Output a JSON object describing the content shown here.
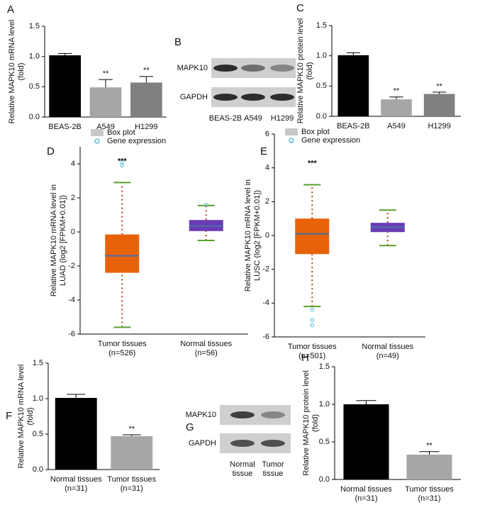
{
  "chart_data": [
    {
      "type": "bar",
      "panel": "A",
      "ylabel": [
        "Relative MAPK10 mRNA level",
        "(fold)"
      ],
      "categories": [
        "BEAS-2B",
        "A549",
        "H1299"
      ],
      "values": [
        1.02,
        0.49,
        0.57
      ],
      "errors": [
        0.03,
        0.13,
        0.1
      ],
      "colors": [
        "#000000",
        "#a6a6a6",
        "#808080"
      ],
      "significance": [
        null,
        "**",
        "**"
      ],
      "ylim": [
        0,
        1.5
      ],
      "yticks": [
        {
          "value": 0,
          "label": "0.0"
        },
        {
          "value": 0.5,
          "label": "0.5"
        },
        {
          "value": 1,
          "label": "1.0"
        },
        {
          "value": 1.5,
          "label": "1.5"
        }
      ]
    },
    {
      "type": "blot",
      "panel": "B",
      "rows": [
        "MAPK10",
        "GAPDH"
      ],
      "lanes": [
        [
          "BEAS-2B"
        ],
        [
          "A549"
        ],
        [
          "H1299"
        ]
      ]
    },
    {
      "type": "bar",
      "panel": "C",
      "ylabel": [
        "Relative MAPK10 protein level",
        "(fold)"
      ],
      "categories": [
        "BEAS-2B",
        "A549",
        "H1299"
      ],
      "values": [
        1.01,
        0.28,
        0.37
      ],
      "errors": [
        0.04,
        0.04,
        0.03
      ],
      "colors": [
        "#000000",
        "#a6a6a6",
        "#808080"
      ],
      "significance": [
        null,
        "**",
        "**"
      ],
      "ylim": [
        0,
        1.5
      ],
      "yticks": [
        {
          "value": 0,
          "label": "0.0"
        },
        {
          "value": 0.5,
          "label": "0.5"
        },
        {
          "value": 1,
          "label": "1.0"
        },
        {
          "value": 1.5,
          "label": "1.5"
        }
      ]
    },
    {
      "type": "box",
      "panel": "D",
      "ylabel": [
        "Relative MAPK10 mRNA level in",
        "LUAD (log2 [FPKM+0.01])"
      ],
      "legend": [
        "Box plot",
        "Gene expression"
      ],
      "categories": [
        "Tumor tissues",
        "Normal tissues"
      ],
      "sample_sizes": [
        "(n=526)",
        "(n=56)"
      ],
      "boxes": [
        {
          "whisker_low": -5.6,
          "q1": -2.4,
          "median": -1.4,
          "q3": -0.15,
          "whisker_high": 2.9,
          "outliers": [
            3.9,
            4.1
          ]
        },
        {
          "whisker_low": -0.5,
          "q1": 0.05,
          "median": 0.35,
          "q3": 0.7,
          "whisker_high": 1.55,
          "outliers": [
            1.6
          ]
        }
      ],
      "box_colors": [
        "#e8620a",
        "#6a3bb5"
      ],
      "median_color": "#4b6fa8",
      "whisker_color": "#b5401a",
      "cap_color": "#5aa02c",
      "outlier_color": "#49b6d6",
      "significance": [
        "***",
        null
      ],
      "ylim": [
        -6,
        5
      ],
      "yticks": [
        -6,
        -4,
        -2,
        0,
        2,
        4
      ]
    },
    {
      "type": "box",
      "panel": "E",
      "ylabel": [
        "Relative MAPK10 mRNA level in",
        "LUSC (log2 [FPKM+0.01])"
      ],
      "legend": [
        "Box plot",
        "Gene expression"
      ],
      "categories": [
        "Tumor tissues",
        "Normal tissues"
      ],
      "sample_sizes": [
        "(n=501)",
        "(n=49)"
      ],
      "boxes": [
        {
          "whisker_low": -4.2,
          "q1": -1.1,
          "median": 0.1,
          "q3": 1.0,
          "whisker_high": 3.0,
          "outliers": [
            -4.4,
            -5.0,
            -5.3
          ]
        },
        {
          "whisker_low": -0.6,
          "q1": 0.2,
          "median": 0.5,
          "q3": 0.75,
          "whisker_high": 1.5,
          "outliers": []
        }
      ],
      "box_colors": [
        "#e8620a",
        "#6a3bb5"
      ],
      "median_color": "#4b6fa8",
      "whisker_color": "#b5401a",
      "cap_color": "#5aa02c",
      "outlier_color": "#49b6d6",
      "significance": [
        "***",
        null
      ],
      "ylim": [
        -6,
        6
      ],
      "yticks": [
        -6,
        -4,
        -2,
        0,
        2,
        4,
        6
      ]
    },
    {
      "type": "bar",
      "panel": "F",
      "ylabel": [
        "Relative MAPK10 mRNA level",
        "(fold)"
      ],
      "categories": [
        "Normal tissues",
        "Tumor tissues"
      ],
      "sample_sizes": [
        "(n=31)",
        "(n=31)"
      ],
      "values": [
        1.01,
        0.47
      ],
      "errors": [
        0.05,
        0.02
      ],
      "colors": [
        "#000000",
        "#a6a6a6"
      ],
      "significance": [
        null,
        "**"
      ],
      "ylim": [
        0,
        1.5
      ],
      "yticks": [
        {
          "value": 0,
          "label": "0.0"
        },
        {
          "value": 0.5,
          "label": "0.5"
        },
        {
          "value": 1,
          "label": "1.0"
        },
        {
          "value": 1.5,
          "label": "1.5"
        }
      ]
    },
    {
      "type": "blot",
      "panel": "G",
      "rows": [
        "MAPK10",
        "GAPDH"
      ],
      "lanes": [
        [
          "Normal",
          "tissue"
        ],
        [
          "Tumor",
          "tissue"
        ]
      ]
    },
    {
      "type": "bar",
      "panel": "H",
      "ylabel": [
        "Relative MAPK10 protein level",
        "(fold)"
      ],
      "categories": [
        "Normal tissues",
        "Tumor tissues"
      ],
      "sample_sizes": [
        "(n=31)",
        "(n=31)"
      ],
      "values": [
        1.0,
        0.33
      ],
      "errors": [
        0.05,
        0.04
      ],
      "colors": [
        "#000000",
        "#a6a6a6"
      ],
      "significance": [
        null,
        "**"
      ],
      "ylim": [
        0,
        1.5
      ],
      "yticks": [
        {
          "value": 0,
          "label": "0.0"
        },
        {
          "value": 0.5,
          "label": "0.5"
        },
        {
          "value": 1,
          "label": "1.0"
        },
        {
          "value": 1.5,
          "label": "1.5"
        }
      ]
    }
  ]
}
